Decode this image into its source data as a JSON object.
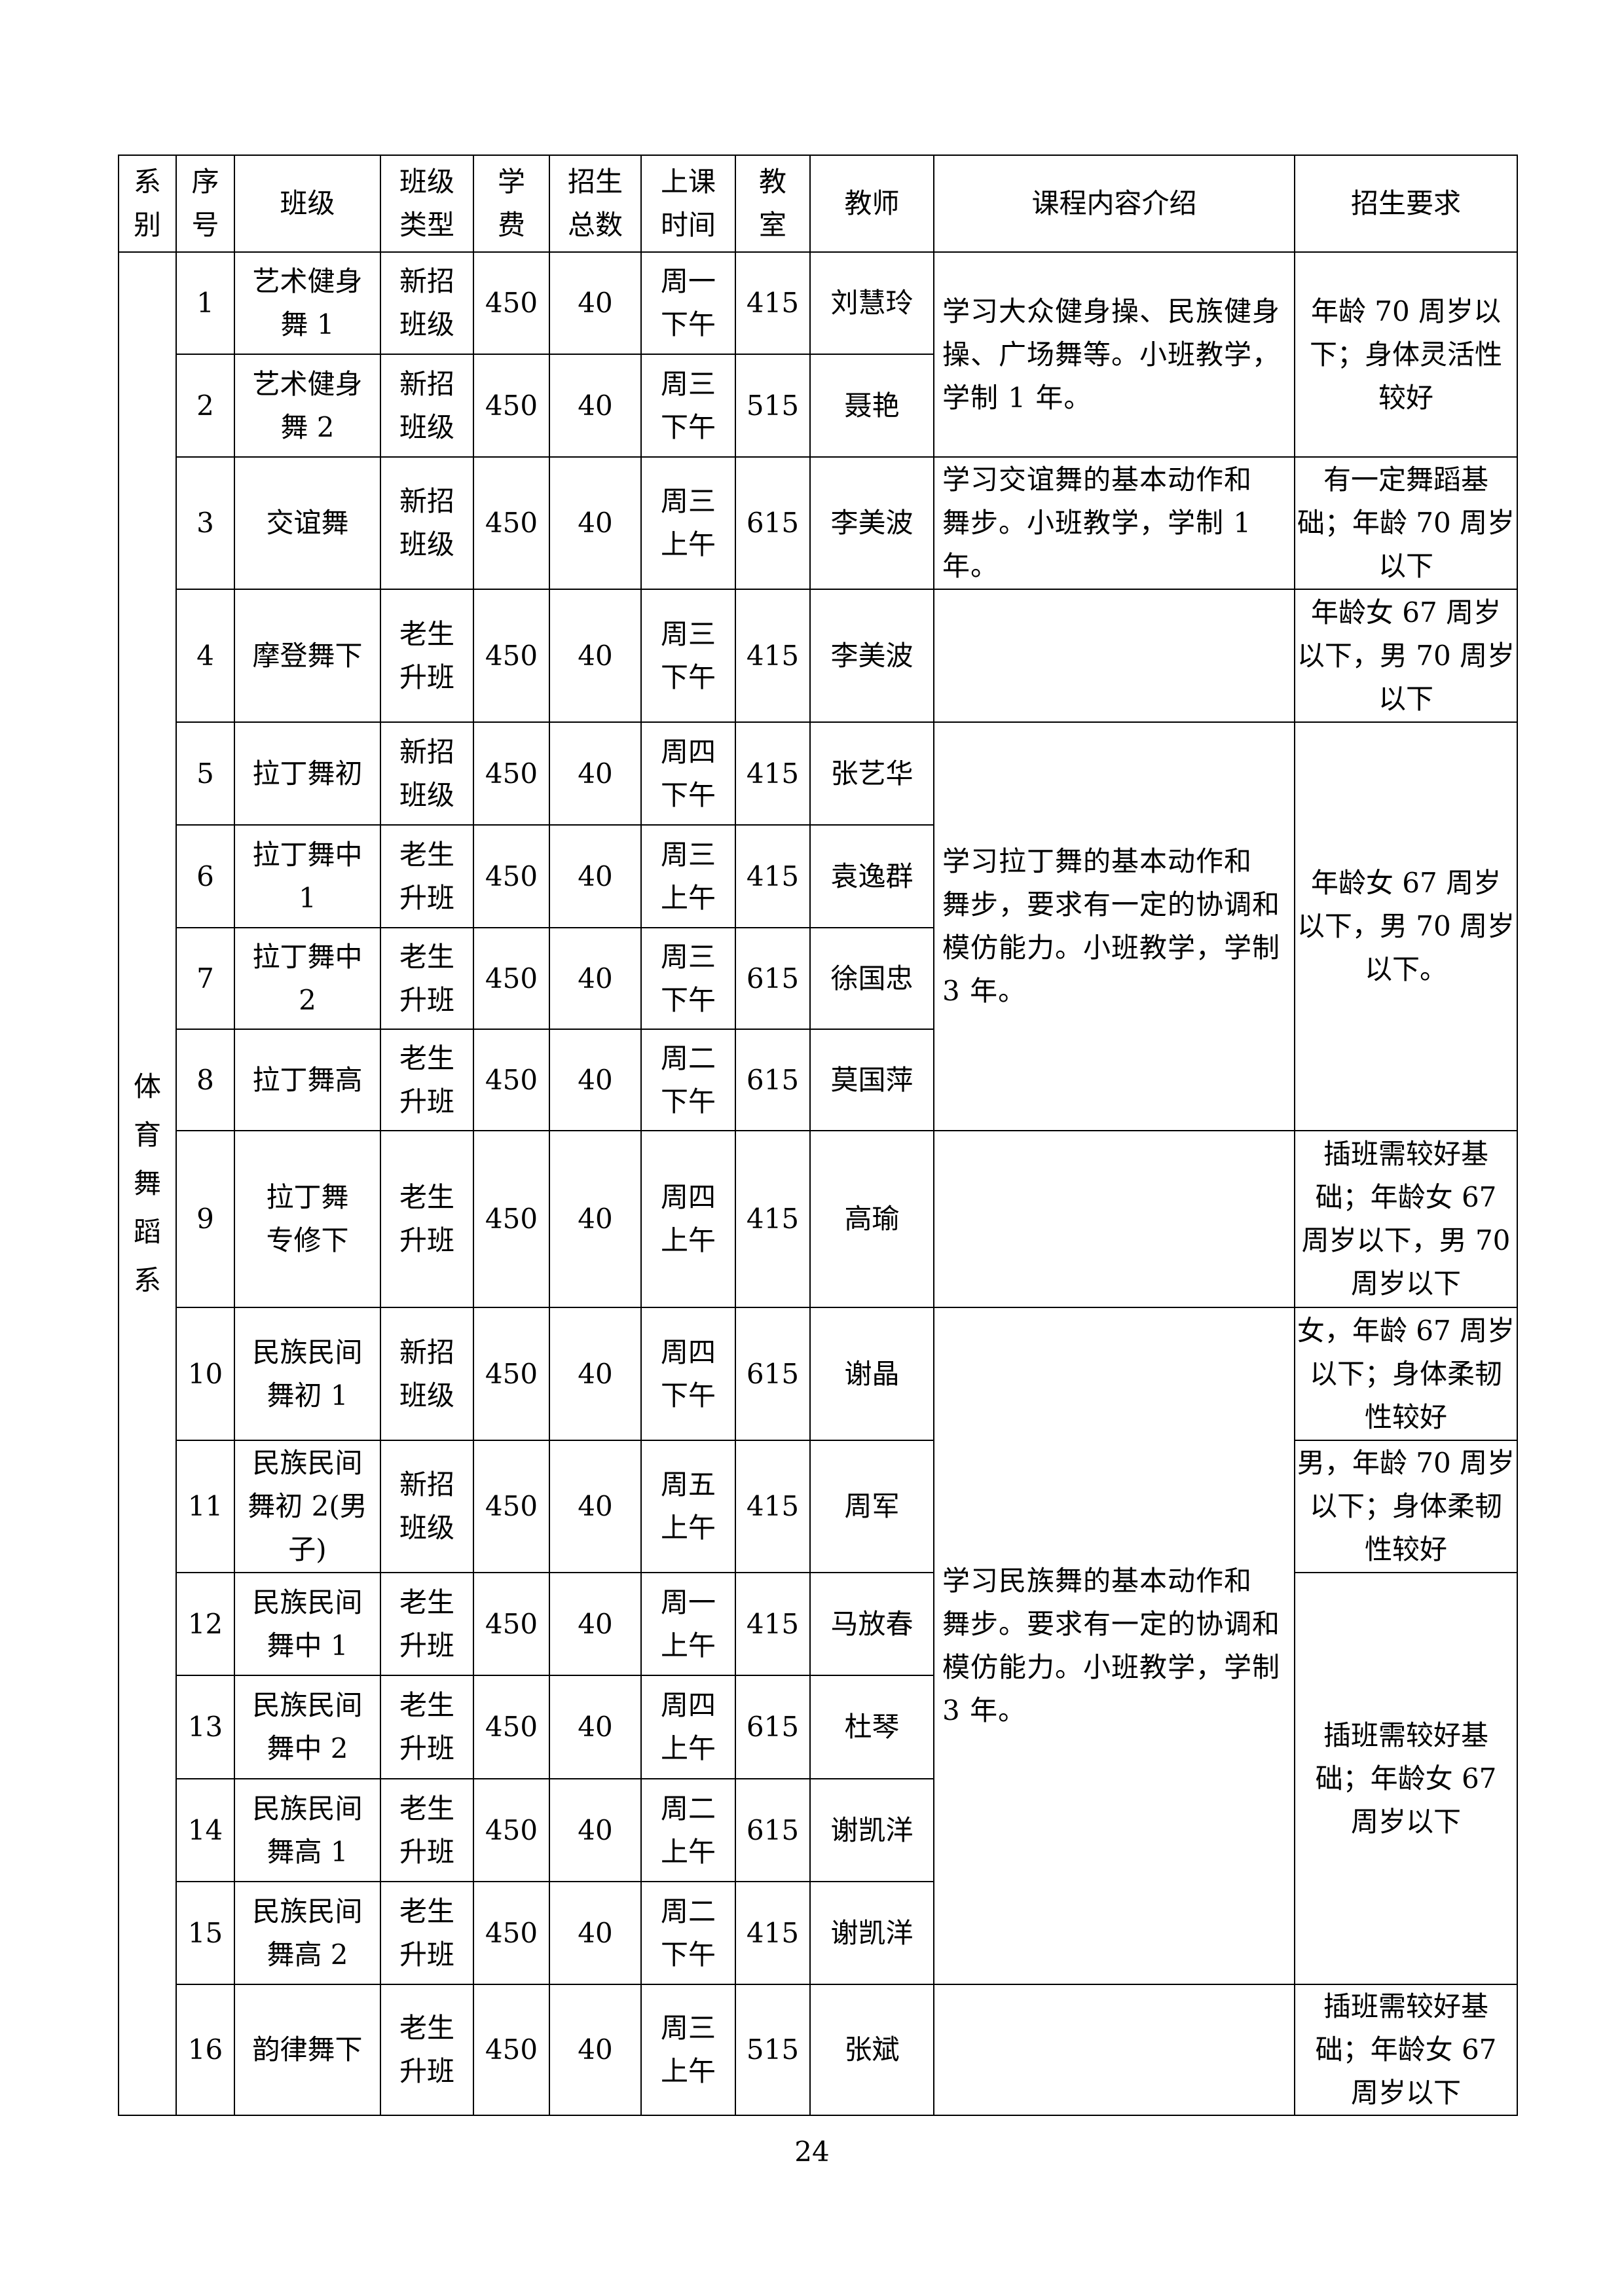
{
  "headers": [
    "系\n别",
    "序\n号",
    "班级",
    "班级\n类型",
    "学\n费",
    "招生\n总数",
    "上课\n时间",
    "教\n室",
    "教师",
    "课程内容介绍",
    "招生要求"
  ],
  "department": "体\n育\n舞\n蹈\n系",
  "rows": [
    {
      "seq": "1",
      "class": "艺术健身\n舞 1",
      "type": "新招\n班级",
      "fee": "450",
      "quota": "40",
      "time": "周一\n下午",
      "room": "415",
      "teacher": "刘慧玲"
    },
    {
      "seq": "2",
      "class": "艺术健身\n舞 2",
      "type": "新招\n班级",
      "fee": "450",
      "quota": "40",
      "time": "周三\n下午",
      "room": "515",
      "teacher": "聂艳"
    },
    {
      "seq": "3",
      "class": "交谊舞",
      "type": "新招\n班级",
      "fee": "450",
      "quota": "40",
      "time": "周三\n上午",
      "room": "615",
      "teacher": "李美波"
    },
    {
      "seq": "4",
      "class": "摩登舞下",
      "type": "老生\n升班",
      "fee": "450",
      "quota": "40",
      "time": "周三\n下午",
      "room": "415",
      "teacher": "李美波"
    },
    {
      "seq": "5",
      "class": "拉丁舞初",
      "type": "新招\n班级",
      "fee": "450",
      "quota": "40",
      "time": "周四\n下午",
      "room": "415",
      "teacher": "张艺华"
    },
    {
      "seq": "6",
      "class": "拉丁舞中\n1",
      "type": "老生\n升班",
      "fee": "450",
      "quota": "40",
      "time": "周三\n上午",
      "room": "415",
      "teacher": "袁逸群"
    },
    {
      "seq": "7",
      "class": "拉丁舞中\n2",
      "type": "老生\n升班",
      "fee": "450",
      "quota": "40",
      "time": "周三\n下午",
      "room": "615",
      "teacher": "徐国忠"
    },
    {
      "seq": "8",
      "class": "拉丁舞高",
      "type": "老生\n升班",
      "fee": "450",
      "quota": "40",
      "time": "周二\n下午",
      "room": "615",
      "teacher": "莫国萍"
    },
    {
      "seq": "9",
      "class": "拉丁舞\n专修下",
      "type": "老生\n升班",
      "fee": "450",
      "quota": "40",
      "time": "周四\n上午",
      "room": "415",
      "teacher": "高瑜"
    },
    {
      "seq": "10",
      "class": "民族民间\n舞初 1",
      "type": "新招\n班级",
      "fee": "450",
      "quota": "40",
      "time": "周四\n下午",
      "room": "615",
      "teacher": "谢晶"
    },
    {
      "seq": "11",
      "class": "民族民间\n舞初 2(男\n子)",
      "type": "新招\n班级",
      "fee": "450",
      "quota": "40",
      "time": "周五\n上午",
      "room": "415",
      "teacher": "周军"
    },
    {
      "seq": "12",
      "class": "民族民间\n舞中 1",
      "type": "老生\n升班",
      "fee": "450",
      "quota": "40",
      "time": "周一\n上午",
      "room": "415",
      "teacher": "马放春"
    },
    {
      "seq": "13",
      "class": "民族民间\n舞中 2",
      "type": "老生\n升班",
      "fee": "450",
      "quota": "40",
      "time": "周四\n上午",
      "room": "615",
      "teacher": "杜琴"
    },
    {
      "seq": "14",
      "class": "民族民间\n舞高 1",
      "type": "老生\n升班",
      "fee": "450",
      "quota": "40",
      "time": "周二\n上午",
      "room": "615",
      "teacher": "谢凯洋"
    },
    {
      "seq": "15",
      "class": "民族民间\n舞高 2",
      "type": "老生\n升班",
      "fee": "450",
      "quota": "40",
      "time": "周二\n下午",
      "room": "415",
      "teacher": "谢凯洋"
    },
    {
      "seq": "16",
      "class": "韵律舞下",
      "type": "老生\n升班",
      "fee": "450",
      "quota": "40",
      "time": "周三\n上午",
      "room": "515",
      "teacher": "张斌"
    }
  ],
  "intro_groups": [
    {
      "seq_from": 1,
      "seq_to": 2,
      "text": "学习大众健身操、民族健身\n操、广场舞等。小班教学，\n学制 1 年。"
    },
    {
      "seq_from": 3,
      "seq_to": 3,
      "text": "学习交谊舞的基本动作和\n舞步。小班教学，学制 1 年。"
    },
    {
      "seq_from": 4,
      "seq_to": 4,
      "text": ""
    },
    {
      "seq_from": 5,
      "seq_to": 8,
      "text": "学习拉丁舞的基本动作和\n舞步，要求有一定的协调和\n模仿能力。小班教学，学制\n3 年。"
    },
    {
      "seq_from": 9,
      "seq_to": 9,
      "text": ""
    },
    {
      "seq_from": 10,
      "seq_to": 15,
      "text": "学习民族舞的基本动作和\n舞步。要求有一定的协调和\n模仿能力。小班教学，学制\n3 年。"
    },
    {
      "seq_from": 16,
      "seq_to": 16,
      "text": ""
    }
  ],
  "requirement_groups": [
    {
      "seq_from": 1,
      "seq_to": 2,
      "text": "年龄 70 周岁以\n下；身体灵活性\n较好"
    },
    {
      "seq_from": 3,
      "seq_to": 3,
      "text": "有一定舞蹈基\n础；年龄 70 周岁\n以下"
    },
    {
      "seq_from": 4,
      "seq_to": 4,
      "text": "年龄女 67 周岁\n以下，男 70 周岁\n以下"
    },
    {
      "seq_from": 5,
      "seq_to": 8,
      "text": "年龄女 67 周岁\n以下，男 70 周岁\n以下。"
    },
    {
      "seq_from": 9,
      "seq_to": 9,
      "text": "插班需较好基\n础；年龄女 67\n周岁以下，男 70\n周岁以下"
    },
    {
      "seq_from": 10,
      "seq_to": 10,
      "text": "女，年龄 67 周岁\n以下；身体柔韧\n性较好"
    },
    {
      "seq_from": 11,
      "seq_to": 11,
      "text": "男，年龄 70 周岁\n以下；身体柔韧\n性较好"
    },
    {
      "seq_from": 12,
      "seq_to": 15,
      "text": "插班需较好基\n础；年龄女 67\n周岁以下"
    },
    {
      "seq_from": 16,
      "seq_to": 16,
      "text": "插班需较好基\n础；年龄女 67\n周岁以下"
    }
  ],
  "page_number": "24"
}
